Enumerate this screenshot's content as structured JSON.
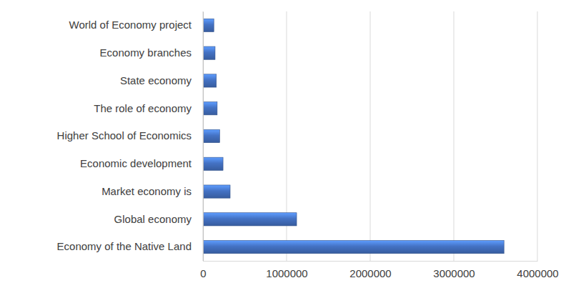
{
  "chart_data": {
    "type": "bar",
    "orientation": "horizontal",
    "categories": [
      "World of Economy project",
      "Economy branches",
      "State economy",
      "The role of economy",
      "Higher School of Economics",
      "Economic development",
      "Market economy is",
      "Global economy",
      "Economy of the Native Land"
    ],
    "values": [
      130000,
      145000,
      160000,
      170000,
      200000,
      240000,
      325000,
      1120000,
      3600000
    ],
    "color": "#4472c4",
    "xlim": [
      0,
      4000000
    ],
    "xticks": [
      0,
      1000000,
      2000000,
      3000000,
      4000000
    ],
    "grid": true
  }
}
